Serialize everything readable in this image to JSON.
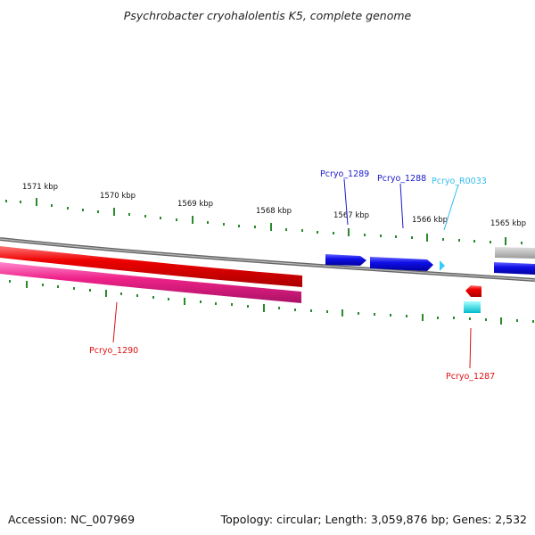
{
  "title": "Psychrobacter cryohalolentis K5, complete genome",
  "footer": {
    "accession": "Accession: NC_007969",
    "summary": "Topology: circular; Length: 3,059,876 bp; Genes: 2,532"
  },
  "scale_labels": [
    "1571 kbp",
    "1570 kbp",
    "1569 kbp",
    "1568 kbp",
    "1567 kbp",
    "1566 kbp",
    "1565 kbp"
  ],
  "gene_labels": [
    {
      "text": "Pcryo_1289",
      "color": "#1a1acc"
    },
    {
      "text": "Pcryo_1288",
      "color": "#1a1acc"
    },
    {
      "text": "Pcryo_R0033",
      "color": "#33bbee"
    },
    {
      "text": "Pcryo_1290",
      "color": "#dd1111"
    },
    {
      "text": "Pcryo_1287",
      "color": "#dd1111"
    }
  ],
  "colors": {
    "backbone": "#777777",
    "forward_gene": "#1010e8",
    "rna_gene": "#33ccff",
    "reverse_gene": "#ee1111",
    "reverse_pink": "#ee2288",
    "cyan_gene": "#22dddd",
    "tick": "#2a8a2a"
  }
}
